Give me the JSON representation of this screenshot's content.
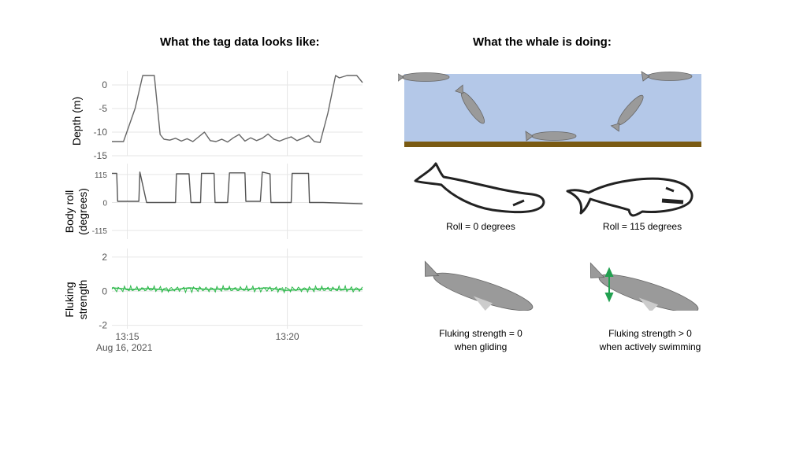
{
  "left_heading": "What the tag data looks like:",
  "right_heading": "What the whale is doing:",
  "chart_data": [
    {
      "type": "line",
      "ylabel": "Depth (m)",
      "yticks": [
        0,
        -5,
        -10,
        -15
      ],
      "ylim": [
        -15,
        3
      ],
      "color": "#666666",
      "series": [
        {
          "x": [
            0,
            0.6,
            1.2,
            1.6,
            1.85,
            2.2,
            2.5,
            2.7,
            3.0,
            3.3,
            3.6,
            3.9,
            4.2,
            4.5,
            4.8,
            5.1,
            5.4,
            5.7,
            6.0,
            6.3,
            6.6,
            6.9,
            7.2,
            7.5,
            7.8,
            8.1,
            8.4,
            8.7,
            9.0,
            9.3,
            9.6,
            9.9,
            10.2,
            10.5,
            10.8,
            11.2,
            11.6,
            11.8,
            12.2,
            12.7,
            13.0
          ],
          "y": [
            -12,
            -12,
            -5,
            2,
            2,
            2,
            -10.5,
            -11.5,
            -11.7,
            -11.3,
            -11.9,
            -11.4,
            -12,
            -11,
            -10,
            -11.8,
            -12,
            -11.5,
            -12.1,
            -11.2,
            -10.5,
            -11.9,
            -11.2,
            -11.8,
            -11.3,
            -10.4,
            -11.5,
            -11.9,
            -11.4,
            -11,
            -11.8,
            -11.3,
            -10.7,
            -12,
            -12.2,
            -6,
            2,
            1.5,
            2,
            2,
            0.5
          ]
        }
      ]
    },
    {
      "type": "line",
      "ylabel": "Body roll (degrees)",
      "yticks": [
        115,
        0,
        -115
      ],
      "ylim": [
        -150,
        160
      ],
      "color": "#555555",
      "series": [
        {
          "x": [
            0,
            0.25,
            0.3,
            1.4,
            1.45,
            1.8,
            2.2,
            2.25,
            3.3,
            3.35,
            4.0,
            4.1,
            4.6,
            4.65,
            5.3,
            5.35,
            6.0,
            6.1,
            6.9,
            6.95,
            7.7,
            7.8,
            8.2,
            8.25,
            9.3,
            9.35,
            10.2,
            10.25,
            10.9,
            10.95,
            13.0
          ],
          "y": [
            120,
            120,
            5,
            5,
            125,
            0,
            0,
            0,
            0,
            118,
            118,
            0,
            0,
            120,
            120,
            0,
            0,
            122,
            122,
            5,
            5,
            125,
            118,
            0,
            0,
            120,
            120,
            0,
            0,
            0,
            -5
          ]
        }
      ]
    },
    {
      "type": "line",
      "ylabel": "Fluking strength",
      "yticks": [
        2,
        0,
        -2
      ],
      "ylim": [
        -2.2,
        2.5
      ],
      "color": "#2db84b",
      "x_ticks": [
        "13:15",
        "13:20"
      ],
      "x_date": "Aug 16, 2021",
      "series": [
        {
          "x": [
            0,
            1,
            2,
            3,
            4,
            5,
            6,
            7,
            8,
            9,
            10,
            11,
            12,
            13
          ],
          "y": [
            0.2,
            0.1,
            0.15,
            0.05,
            0.2,
            0.1,
            0.15,
            0.1,
            0.2,
            0.05,
            0.1,
            0.15,
            0.1,
            0.1
          ]
        }
      ]
    }
  ],
  "captions": {
    "roll0": "Roll = 0 degrees",
    "roll115": "Roll = 115 degrees",
    "fluke0_l1": "Fluking strength = 0",
    "fluke0_l2": "when gliding",
    "fluke1_l1": "Fluking strength > 0",
    "fluke1_l2": "when actively swimming"
  },
  "colors": {
    "water": "#b4c8e8",
    "seabed": "#7a5a12",
    "whale_body": "#9a9a9a",
    "fluke_arrow": "#22a050"
  }
}
